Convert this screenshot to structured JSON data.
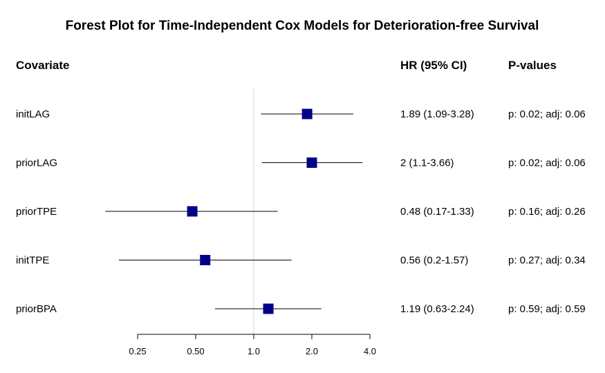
{
  "chart_data": {
    "type": "forest",
    "title": "Forest Plot for Time-Independent Cox Models for Deterioration-free Survival",
    "columns": {
      "covariate": "Covariate",
      "hr": "HR (95% CI)",
      "pvalues": "P-values"
    },
    "x_scale": "log",
    "xlim": [
      0.25,
      4.0
    ],
    "reference_line": 1.0,
    "ticks": [
      {
        "value": 0.25,
        "label": "0.25"
      },
      {
        "value": 0.5,
        "label": "0.50"
      },
      {
        "value": 1.0,
        "label": "1.0"
      },
      {
        "value": 2.0,
        "label": "2.0"
      },
      {
        "value": 4.0,
        "label": "4.0"
      }
    ],
    "rows": [
      {
        "covariate": "initLAG",
        "hr": 1.89,
        "lower": 1.09,
        "upper": 3.28,
        "hr_text": "1.89 (1.09-3.28)",
        "p_text": "p: 0.02; adj: 0.06"
      },
      {
        "covariate": "priorLAG",
        "hr": 2.0,
        "lower": 1.1,
        "upper": 3.66,
        "hr_text": "2 (1.1-3.66)",
        "p_text": "p: 0.02; adj: 0.06"
      },
      {
        "covariate": "priorTPE",
        "hr": 0.48,
        "lower": 0.17,
        "upper": 1.33,
        "hr_text": "0.48 (0.17-1.33)",
        "p_text": "p: 0.16; adj: 0.26"
      },
      {
        "covariate": "initTPE",
        "hr": 0.56,
        "lower": 0.2,
        "upper": 1.57,
        "hr_text": "0.56 (0.2-1.57)",
        "p_text": "p: 0.27; adj: 0.34"
      },
      {
        "covariate": "priorBPA",
        "hr": 1.19,
        "lower": 0.63,
        "upper": 2.24,
        "hr_text": "1.19 (0.63-2.24)",
        "p_text": "p: 0.59; adj: 0.59"
      }
    ],
    "colors": {
      "marker": "#00008b",
      "ci_line": "#000000",
      "reference_line": "#d3d3d3",
      "text": "#000000"
    }
  }
}
